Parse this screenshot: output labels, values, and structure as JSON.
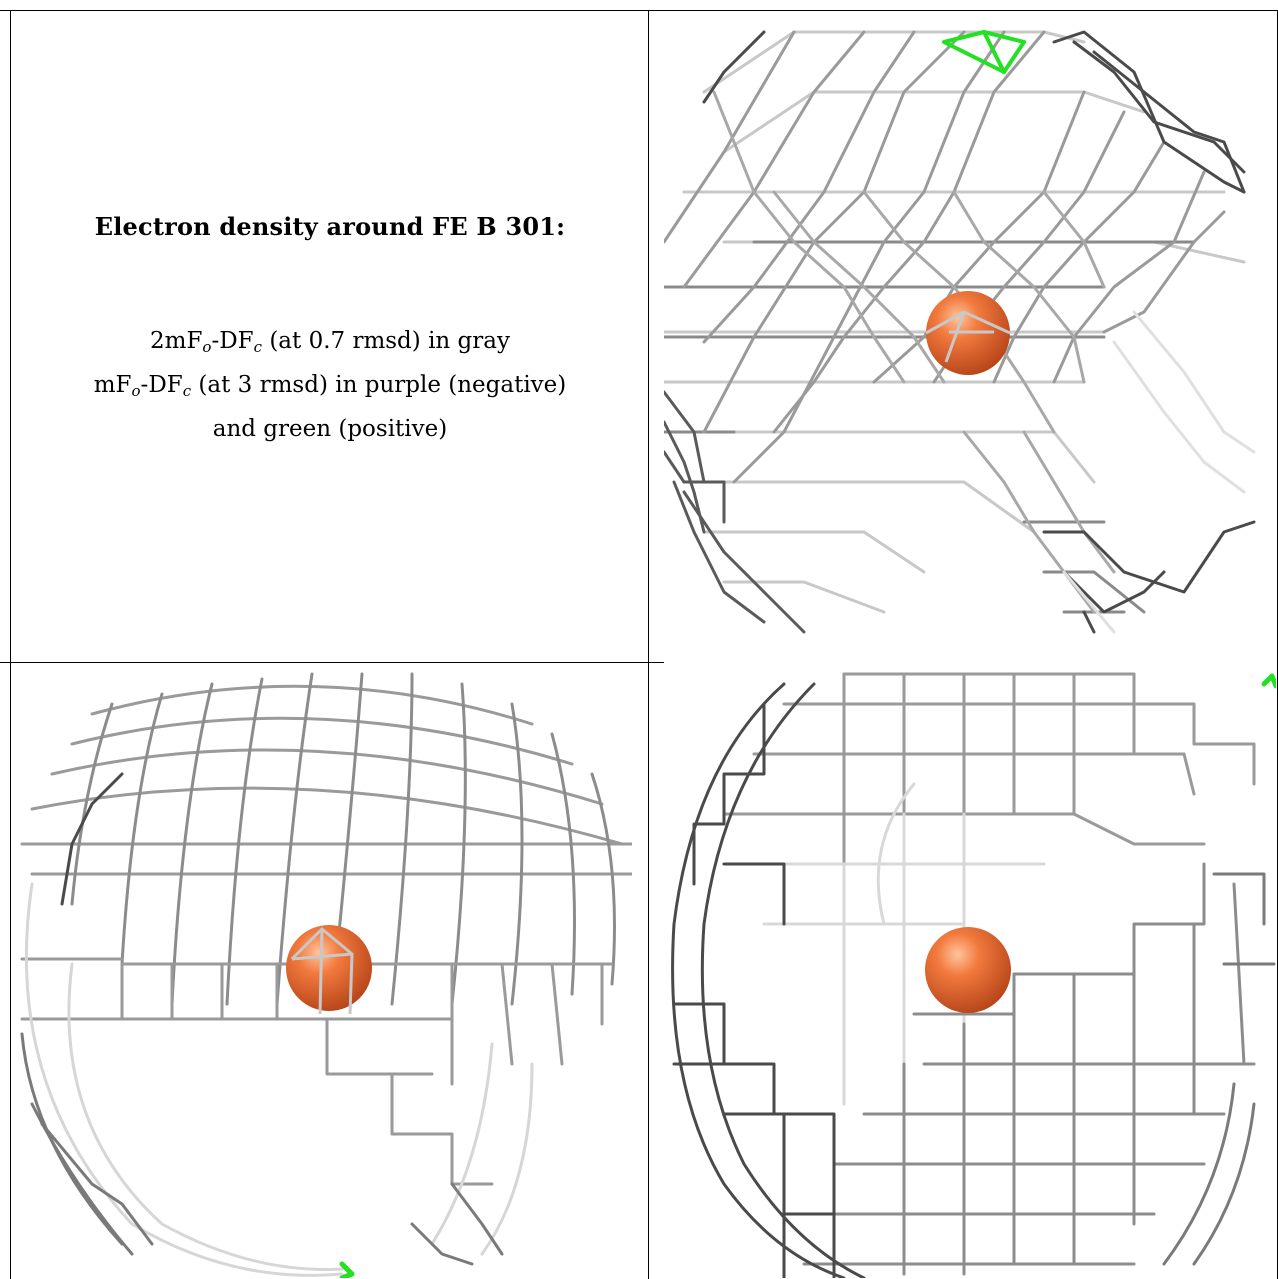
{
  "caption": {
    "title": "Electron density around FE B 301:",
    "line1": {
      "a": "2mF",
      "sub1": "o",
      "b": "-DF",
      "sub2": "c",
      "c": " (at 0.7 rmsd) in gray"
    },
    "line2": {
      "a": "mF",
      "sub1": "o",
      "b": "-DF",
      "sub2": "c",
      "c": " (at 3 rmsd) in purple (negative)"
    },
    "line3": "and green (positive)"
  },
  "panels": [
    {
      "name": "view-top-right",
      "atom": "FE B 301"
    },
    {
      "name": "view-bottom-left",
      "atom": "FE B 301"
    },
    {
      "name": "view-bottom-right",
      "atom": "FE B 301"
    }
  ],
  "colors": {
    "mesh_gray": "#8a8a8a",
    "mesh_dark": "#4a4a4a",
    "mesh_light": "#d0d0d0",
    "positive_green": "#22e022",
    "iron_orange": "#e8642c"
  }
}
